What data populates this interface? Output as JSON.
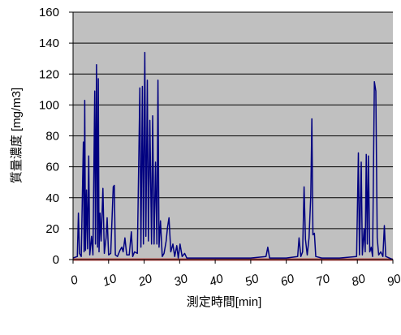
{
  "chart_data": {
    "type": "line",
    "title": "",
    "xlabel": "測定時間[min]",
    "ylabel": "質量濃度 [mg/m3]",
    "xlim": [
      0,
      90
    ],
    "ylim": [
      0,
      160
    ],
    "x_ticks": [
      "0",
      "10",
      "20",
      "30",
      "40",
      "50",
      "60",
      "70",
      "80",
      "90"
    ],
    "y_ticks": [
      "0",
      "20",
      "40",
      "60",
      "80",
      "100",
      "120",
      "140",
      "160"
    ],
    "grid": true,
    "legend": "none",
    "plot_background": "#c0c0c0",
    "series": [
      {
        "color": "#000080",
        "points": [
          [
            0,
            1
          ],
          [
            1.2,
            2
          ],
          [
            1.5,
            30
          ],
          [
            1.8,
            4
          ],
          [
            2.3,
            2
          ],
          [
            2.9,
            76
          ],
          [
            3.1,
            5
          ],
          [
            3.3,
            103
          ],
          [
            3.5,
            6
          ],
          [
            3.8,
            45
          ],
          [
            4.1,
            7
          ],
          [
            4.4,
            67
          ],
          [
            4.7,
            3
          ],
          [
            5.2,
            15
          ],
          [
            5.6,
            3
          ],
          [
            6.1,
            109
          ],
          [
            6.3,
            10
          ],
          [
            6.6,
            126
          ],
          [
            6.9,
            8
          ],
          [
            7.1,
            117
          ],
          [
            7.3,
            5
          ],
          [
            7.6,
            30
          ],
          [
            7.9,
            12
          ],
          [
            8.4,
            46
          ],
          [
            8.8,
            4
          ],
          [
            9.3,
            14
          ],
          [
            9.6,
            27
          ],
          [
            10,
            3
          ],
          [
            10.6,
            4
          ],
          [
            11.3,
            47
          ],
          [
            11.6,
            48
          ],
          [
            11.9,
            3
          ],
          [
            12.5,
            2
          ],
          [
            13.2,
            6
          ],
          [
            13.7,
            8
          ],
          [
            14.1,
            5
          ],
          [
            14.6,
            14
          ],
          [
            15.1,
            3
          ],
          [
            15.8,
            3
          ],
          [
            16.4,
            18
          ],
          [
            16.8,
            2
          ],
          [
            17.3,
            5
          ],
          [
            18.1,
            4
          ],
          [
            18.8,
            111
          ],
          [
            19.1,
            8
          ],
          [
            19.5,
            112
          ],
          [
            19.8,
            10
          ],
          [
            20.2,
            134
          ],
          [
            20.5,
            15
          ],
          [
            20.9,
            116
          ],
          [
            21.2,
            12
          ],
          [
            21.6,
            90
          ],
          [
            22.1,
            10
          ],
          [
            22.4,
            93
          ],
          [
            22.8,
            10
          ],
          [
            23.2,
            63
          ],
          [
            23.6,
            10
          ],
          [
            23.9,
            116
          ],
          [
            24.2,
            8
          ],
          [
            24.6,
            25
          ],
          [
            25.1,
            2
          ],
          [
            25.6,
            4
          ],
          [
            26.2,
            12
          ],
          [
            26.6,
            21
          ],
          [
            27,
            27
          ],
          [
            27.5,
            5
          ],
          [
            28.1,
            10
          ],
          [
            28.6,
            2
          ],
          [
            29.2,
            9
          ],
          [
            29.6,
            1
          ],
          [
            30.1,
            10
          ],
          [
            30.7,
            2
          ],
          [
            31.4,
            4
          ],
          [
            32,
            1
          ],
          [
            35,
            1
          ],
          [
            40,
            1
          ],
          [
            45,
            1
          ],
          [
            50,
            1
          ],
          [
            54.3,
            2
          ],
          [
            54.8,
            8
          ],
          [
            55.3,
            1
          ],
          [
            60,
            1
          ],
          [
            63.2,
            2
          ],
          [
            63.6,
            14
          ],
          [
            64.1,
            2
          ],
          [
            64.6,
            5
          ],
          [
            65,
            47
          ],
          [
            65.4,
            13
          ],
          [
            65.9,
            3
          ],
          [
            66.4,
            14
          ],
          [
            66.9,
            42
          ],
          [
            67.2,
            91
          ],
          [
            67.5,
            16
          ],
          [
            67.9,
            17
          ],
          [
            68.3,
            2
          ],
          [
            70,
            1
          ],
          [
            75,
            1
          ],
          [
            79.8,
            2
          ],
          [
            80.3,
            69
          ],
          [
            80.6,
            3
          ],
          [
            81.1,
            63
          ],
          [
            81.4,
            3
          ],
          [
            81.9,
            20
          ],
          [
            82.2,
            5
          ],
          [
            82.5,
            68
          ],
          [
            82.8,
            10
          ],
          [
            83.1,
            67
          ],
          [
            83.5,
            5
          ],
          [
            83.9,
            8
          ],
          [
            84.3,
            2
          ],
          [
            84.8,
            115
          ],
          [
            85.2,
            109
          ],
          [
            85.6,
            14
          ],
          [
            86,
            3
          ],
          [
            86.6,
            5
          ],
          [
            87.2,
            2
          ],
          [
            87.6,
            22
          ],
          [
            88,
            2
          ],
          [
            89,
            1
          ],
          [
            90,
            0
          ]
        ]
      },
      {
        "color": "#c0504d",
        "points": [
          [
            0,
            0
          ],
          [
            90,
            0
          ]
        ]
      }
    ]
  }
}
